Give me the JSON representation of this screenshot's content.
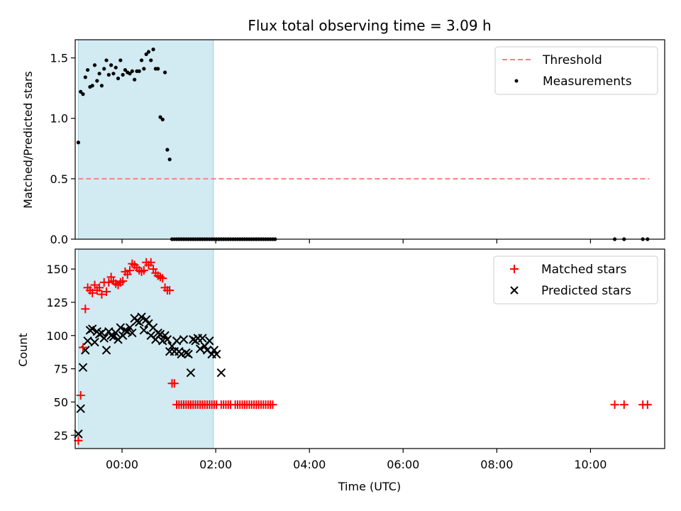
{
  "chart_data": [
    {
      "type": "scatter",
      "title": "Flux total observing time = 3.09 h",
      "xlabel": "",
      "ylabel": "Matched/Predicted stars",
      "xlim": [
        "-01:00",
        "11:35"
      ],
      "ylim": [
        0,
        1.65
      ],
      "y_ticks": [
        0.0,
        0.5,
        1.0,
        1.5
      ],
      "y_tick_labels": [
        "0.0",
        "0.5",
        "1.0",
        "1.5"
      ],
      "x_ticks": [
        "00:00",
        "02:00",
        "04:00",
        "06:00",
        "08:00",
        "10:00"
      ],
      "shaded_interval": [
        "-00:56",
        "01:57"
      ],
      "shaded_color": "#add8e6",
      "legend_location": "upper right",
      "series": [
        {
          "name": "Threshold",
          "kind": "line",
          "style": "dashed",
          "color": "#ff7f7f",
          "x": [
            "-00:56",
            "11:15"
          ],
          "y": [
            0.5,
            0.5
          ]
        },
        {
          "name": "Measurements",
          "kind": "points",
          "color": "#000000",
          "x": [
            "-00:56",
            "-00:53",
            "-00:50",
            "-00:47",
            "-00:44",
            "-00:41",
            "-00:38",
            "-00:35",
            "-00:32",
            "-00:29",
            "-00:26",
            "-00:23",
            "-00:20",
            "-00:17",
            "-00:14",
            "-00:11",
            "-00:08",
            "-00:05",
            "-00:02",
            "00:01",
            "00:04",
            "00:07",
            "00:10",
            "00:13",
            "00:16",
            "00:19",
            "00:22",
            "00:25",
            "00:28",
            "00:31",
            "00:34",
            "00:37",
            "00:40",
            "00:43",
            "00:46",
            "00:49",
            "00:52",
            "00:55",
            "00:58",
            "01:01",
            "01:04",
            "01:07",
            "01:10",
            "01:13",
            "01:16",
            "01:19",
            "01:22",
            "01:25",
            "01:28",
            "01:31",
            "01:34",
            "01:37",
            "01:40",
            "01:43",
            "01:46",
            "01:49",
            "01:52",
            "01:55",
            "01:58",
            "02:01",
            "02:04",
            "02:07",
            "02:10",
            "02:13",
            "02:16",
            "02:19",
            "02:22",
            "02:25",
            "02:28",
            "02:31",
            "02:34",
            "02:37",
            "02:40",
            "02:43",
            "02:46",
            "02:49",
            "02:52",
            "02:55",
            "02:58",
            "03:01",
            "03:04",
            "03:07",
            "03:10",
            "03:13",
            "03:16",
            "10:31",
            "10:43",
            "11:07",
            "11:13"
          ],
          "y": [
            0.8,
            1.22,
            1.2,
            1.34,
            1.4,
            1.26,
            1.27,
            1.44,
            1.31,
            1.37,
            1.27,
            1.41,
            1.48,
            1.36,
            1.44,
            1.37,
            1.42,
            1.33,
            1.48,
            1.36,
            1.4,
            1.38,
            1.37,
            1.39,
            1.32,
            1.39,
            1.39,
            1.48,
            1.41,
            1.53,
            1.55,
            1.48,
            1.57,
            1.41,
            1.41,
            1.01,
            0.99,
            1.38,
            0.74,
            0.66,
            0.0,
            0.0,
            0.0,
            0.0,
            0.0,
            0.0,
            0.0,
            0.0,
            0.0,
            0.0,
            0.0,
            0.0,
            0.0,
            0.0,
            0.0,
            0.0,
            0.0,
            0.0,
            0.0,
            0.0,
            0.0,
            0.0,
            0.0,
            0.0,
            0.0,
            0.0,
            0.0,
            0.0,
            0.0,
            0.0,
            0.0,
            0.0,
            0.0,
            0.0,
            0.0,
            0.0,
            0.0,
            0.0,
            0.0,
            0.0,
            0.0,
            0.0,
            0.0,
            0.0,
            0.0,
            0.0,
            0.0,
            0.0,
            0.0
          ]
        }
      ]
    },
    {
      "type": "scatter",
      "title": "",
      "xlabel": "Time (UTC)",
      "ylabel": "Count",
      "xlim": [
        "-01:00",
        "11:35"
      ],
      "ylim": [
        15,
        165
      ],
      "y_ticks": [
        25,
        50,
        75,
        100,
        125,
        150
      ],
      "y_tick_labels": [
        "25",
        "50",
        "75",
        "100",
        "125",
        "150"
      ],
      "x_ticks": [
        "00:00",
        "02:00",
        "04:00",
        "06:00",
        "08:00",
        "10:00"
      ],
      "x_tick_labels": [
        "00:00",
        "02:00",
        "04:00",
        "06:00",
        "08:00",
        "10:00"
      ],
      "shaded_interval": [
        "-00:56",
        "01:57"
      ],
      "shaded_color": "#add8e6",
      "legend_location": "upper right",
      "series": [
        {
          "name": "Matched stars",
          "marker": "plus",
          "color": "#ff0000",
          "x": [
            "-00:56",
            "-00:53",
            "-00:50",
            "-00:47",
            "-00:44",
            "-00:41",
            "-00:38",
            "-00:35",
            "-00:32",
            "-00:29",
            "-00:26",
            "-00:23",
            "-00:20",
            "-00:17",
            "-00:14",
            "-00:11",
            "-00:08",
            "-00:05",
            "-00:02",
            "00:01",
            "00:04",
            "00:07",
            "00:10",
            "00:13",
            "00:16",
            "00:19",
            "00:22",
            "00:25",
            "00:28",
            "00:31",
            "00:34",
            "00:37",
            "00:40",
            "00:43",
            "00:46",
            "00:49",
            "00:52",
            "00:55",
            "00:58",
            "01:01",
            "01:04",
            "01:07",
            "01:10",
            "01:13",
            "01:16",
            "01:19",
            "01:22",
            "01:25",
            "01:28",
            "01:31",
            "01:34",
            "01:37",
            "01:40",
            "01:43",
            "01:46",
            "01:49",
            "01:52",
            "01:55",
            "01:58",
            "02:01",
            "02:07",
            "02:10",
            "02:13",
            "02:16",
            "02:19",
            "02:25",
            "02:28",
            "02:31",
            "02:34",
            "02:37",
            "02:40",
            "02:43",
            "02:46",
            "02:49",
            "02:52",
            "02:55",
            "02:58",
            "03:01",
            "03:04",
            "03:07",
            "03:10",
            "03:13",
            "10:31",
            "10:43",
            "11:07",
            "11:13"
          ],
          "y": [
            21,
            55,
            91,
            120,
            136,
            134,
            132,
            138,
            134,
            136,
            131,
            140,
            133,
            140,
            144,
            141,
            139,
            138,
            140,
            141,
            148,
            146,
            149,
            154,
            153,
            151,
            149,
            148,
            149,
            155,
            153,
            155,
            150,
            147,
            145,
            144,
            143,
            136,
            134,
            134,
            64,
            64,
            48,
            48,
            48,
            48,
            48,
            48,
            48,
            48,
            48,
            48,
            48,
            48,
            48,
            48,
            48,
            48,
            48,
            48,
            48,
            48,
            48,
            48,
            48,
            48,
            48,
            48,
            48,
            48,
            48,
            48,
            48,
            48,
            48,
            48,
            48,
            48,
            48,
            48,
            48,
            48,
            48,
            48,
            48,
            48
          ]
        },
        {
          "name": "Predicted stars",
          "marker": "x",
          "color": "#000000",
          "x": [
            "-00:56",
            "-00:53",
            "-00:50",
            "-00:47",
            "-00:44",
            "-00:41",
            "-00:38",
            "-00:35",
            "-00:32",
            "-00:29",
            "-00:26",
            "-00:23",
            "-00:20",
            "-00:17",
            "-00:14",
            "-00:11",
            "-00:08",
            "-00:05",
            "-00:02",
            "00:01",
            "00:04",
            "00:07",
            "00:10",
            "00:13",
            "00:16",
            "00:19",
            "00:22",
            "00:25",
            "00:28",
            "00:31",
            "00:34",
            "00:37",
            "00:40",
            "00:43",
            "00:46",
            "00:49",
            "00:52",
            "00:55",
            "00:58",
            "01:01",
            "01:04",
            "01:07",
            "01:10",
            "01:13",
            "01:16",
            "01:19",
            "01:22",
            "01:25",
            "01:28",
            "01:31",
            "01:34",
            "01:37",
            "01:40",
            "01:43",
            "01:46",
            "01:49",
            "01:52",
            "01:55",
            "01:58",
            "02:01",
            "02:07"
          ],
          "y": [
            26,
            45,
            76,
            89,
            96,
            104,
            105,
            95,
            103,
            101,
            102,
            98,
            89,
            103,
            100,
            99,
            102,
            97,
            106,
            100,
            104,
            103,
            106,
            102,
            113,
            111,
            110,
            114,
            104,
            112,
            109,
            100,
            106,
            97,
            102,
            101,
            96,
            100,
            97,
            88,
            92,
            88,
            96,
            88,
            86,
            97,
            87,
            86,
            72,
            97,
            96,
            98,
            90,
            98,
            92,
            89,
            96,
            86,
            89,
            86,
            72
          ]
        }
      ]
    }
  ]
}
